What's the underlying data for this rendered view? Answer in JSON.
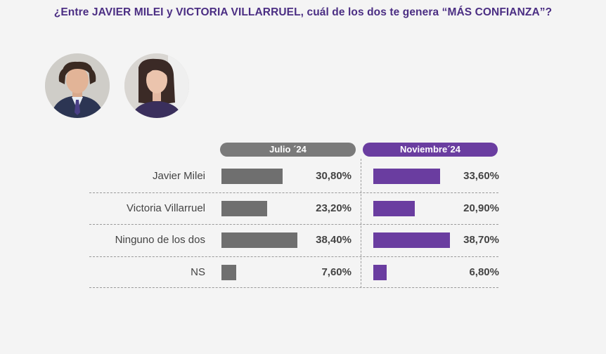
{
  "title": "¿Entre JAVIER MILEI y VICTORIA VILLARRUEL, cuál de los dos te genera “MÁS CONFIANZA”?",
  "colors": {
    "julio": "#6f6f6f",
    "noviembre": "#6a3da0",
    "title": "#4b2e83"
  },
  "avatars": [
    {
      "name": "Javier Milei"
    },
    {
      "name": "Victoria Villarruel"
    }
  ],
  "chart_data": {
    "type": "bar",
    "orientation": "horizontal",
    "categories": [
      "Javier Milei",
      "Victoria Villarruel",
      "Ninguno de los dos",
      "NS"
    ],
    "series": [
      {
        "name": "Julio ´24",
        "values": [
          30.8,
          23.2,
          38.4,
          7.6
        ],
        "labels": [
          "30,80%",
          "23,20%",
          "38,40%",
          "7,60%"
        ]
      },
      {
        "name": "Noviembre´24",
        "values": [
          33.6,
          20.9,
          38.7,
          6.8
        ],
        "labels": [
          "33,60%",
          "20,90%",
          "38,70%",
          "6,80%"
        ]
      }
    ],
    "unit": "%",
    "legend": "top, as column headers"
  }
}
